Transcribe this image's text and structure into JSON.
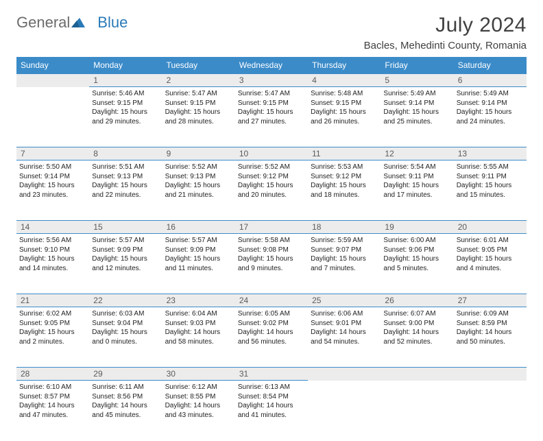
{
  "logo": {
    "general": "General",
    "blue": "Blue"
  },
  "title": "July 2024",
  "location": "Bacles, Mehedinti County, Romania",
  "colors": {
    "header_bg": "#3b8bc9",
    "header_text": "#ffffff",
    "daynum_bg": "#ececec",
    "daynum_text": "#5a5a5a",
    "border": "#3b8bc9",
    "body_text": "#222222",
    "title_text": "#404040",
    "logo_gray": "#6b6b6b",
    "logo_blue": "#2a7ab8"
  },
  "typography": {
    "title_fontsize": 30,
    "location_fontsize": 15,
    "dayhead_fontsize": 12,
    "daynum_fontsize": 12,
    "cell_fontsize": 10
  },
  "day_headers": [
    "Sunday",
    "Monday",
    "Tuesday",
    "Wednesday",
    "Thursday",
    "Friday",
    "Saturday"
  ],
  "weeks": [
    {
      "nums": [
        "",
        "1",
        "2",
        "3",
        "4",
        "5",
        "6"
      ],
      "cells": [
        null,
        {
          "sr": "Sunrise: 5:46 AM",
          "ss": "Sunset: 9:15 PM",
          "dl1": "Daylight: 15 hours",
          "dl2": "and 29 minutes."
        },
        {
          "sr": "Sunrise: 5:47 AM",
          "ss": "Sunset: 9:15 PM",
          "dl1": "Daylight: 15 hours",
          "dl2": "and 28 minutes."
        },
        {
          "sr": "Sunrise: 5:47 AM",
          "ss": "Sunset: 9:15 PM",
          "dl1": "Daylight: 15 hours",
          "dl2": "and 27 minutes."
        },
        {
          "sr": "Sunrise: 5:48 AM",
          "ss": "Sunset: 9:15 PM",
          "dl1": "Daylight: 15 hours",
          "dl2": "and 26 minutes."
        },
        {
          "sr": "Sunrise: 5:49 AM",
          "ss": "Sunset: 9:14 PM",
          "dl1": "Daylight: 15 hours",
          "dl2": "and 25 minutes."
        },
        {
          "sr": "Sunrise: 5:49 AM",
          "ss": "Sunset: 9:14 PM",
          "dl1": "Daylight: 15 hours",
          "dl2": "and 24 minutes."
        }
      ]
    },
    {
      "nums": [
        "7",
        "8",
        "9",
        "10",
        "11",
        "12",
        "13"
      ],
      "cells": [
        {
          "sr": "Sunrise: 5:50 AM",
          "ss": "Sunset: 9:14 PM",
          "dl1": "Daylight: 15 hours",
          "dl2": "and 23 minutes."
        },
        {
          "sr": "Sunrise: 5:51 AM",
          "ss": "Sunset: 9:13 PM",
          "dl1": "Daylight: 15 hours",
          "dl2": "and 22 minutes."
        },
        {
          "sr": "Sunrise: 5:52 AM",
          "ss": "Sunset: 9:13 PM",
          "dl1": "Daylight: 15 hours",
          "dl2": "and 21 minutes."
        },
        {
          "sr": "Sunrise: 5:52 AM",
          "ss": "Sunset: 9:12 PM",
          "dl1": "Daylight: 15 hours",
          "dl2": "and 20 minutes."
        },
        {
          "sr": "Sunrise: 5:53 AM",
          "ss": "Sunset: 9:12 PM",
          "dl1": "Daylight: 15 hours",
          "dl2": "and 18 minutes."
        },
        {
          "sr": "Sunrise: 5:54 AM",
          "ss": "Sunset: 9:11 PM",
          "dl1": "Daylight: 15 hours",
          "dl2": "and 17 minutes."
        },
        {
          "sr": "Sunrise: 5:55 AM",
          "ss": "Sunset: 9:11 PM",
          "dl1": "Daylight: 15 hours",
          "dl2": "and 15 minutes."
        }
      ]
    },
    {
      "nums": [
        "14",
        "15",
        "16",
        "17",
        "18",
        "19",
        "20"
      ],
      "cells": [
        {
          "sr": "Sunrise: 5:56 AM",
          "ss": "Sunset: 9:10 PM",
          "dl1": "Daylight: 15 hours",
          "dl2": "and 14 minutes."
        },
        {
          "sr": "Sunrise: 5:57 AM",
          "ss": "Sunset: 9:09 PM",
          "dl1": "Daylight: 15 hours",
          "dl2": "and 12 minutes."
        },
        {
          "sr": "Sunrise: 5:57 AM",
          "ss": "Sunset: 9:09 PM",
          "dl1": "Daylight: 15 hours",
          "dl2": "and 11 minutes."
        },
        {
          "sr": "Sunrise: 5:58 AM",
          "ss": "Sunset: 9:08 PM",
          "dl1": "Daylight: 15 hours",
          "dl2": "and 9 minutes."
        },
        {
          "sr": "Sunrise: 5:59 AM",
          "ss": "Sunset: 9:07 PM",
          "dl1": "Daylight: 15 hours",
          "dl2": "and 7 minutes."
        },
        {
          "sr": "Sunrise: 6:00 AM",
          "ss": "Sunset: 9:06 PM",
          "dl1": "Daylight: 15 hours",
          "dl2": "and 5 minutes."
        },
        {
          "sr": "Sunrise: 6:01 AM",
          "ss": "Sunset: 9:05 PM",
          "dl1": "Daylight: 15 hours",
          "dl2": "and 4 minutes."
        }
      ]
    },
    {
      "nums": [
        "21",
        "22",
        "23",
        "24",
        "25",
        "26",
        "27"
      ],
      "cells": [
        {
          "sr": "Sunrise: 6:02 AM",
          "ss": "Sunset: 9:05 PM",
          "dl1": "Daylight: 15 hours",
          "dl2": "and 2 minutes."
        },
        {
          "sr": "Sunrise: 6:03 AM",
          "ss": "Sunset: 9:04 PM",
          "dl1": "Daylight: 15 hours",
          "dl2": "and 0 minutes."
        },
        {
          "sr": "Sunrise: 6:04 AM",
          "ss": "Sunset: 9:03 PM",
          "dl1": "Daylight: 14 hours",
          "dl2": "and 58 minutes."
        },
        {
          "sr": "Sunrise: 6:05 AM",
          "ss": "Sunset: 9:02 PM",
          "dl1": "Daylight: 14 hours",
          "dl2": "and 56 minutes."
        },
        {
          "sr": "Sunrise: 6:06 AM",
          "ss": "Sunset: 9:01 PM",
          "dl1": "Daylight: 14 hours",
          "dl2": "and 54 minutes."
        },
        {
          "sr": "Sunrise: 6:07 AM",
          "ss": "Sunset: 9:00 PM",
          "dl1": "Daylight: 14 hours",
          "dl2": "and 52 minutes."
        },
        {
          "sr": "Sunrise: 6:09 AM",
          "ss": "Sunset: 8:59 PM",
          "dl1": "Daylight: 14 hours",
          "dl2": "and 50 minutes."
        }
      ]
    },
    {
      "nums": [
        "28",
        "29",
        "30",
        "31",
        "",
        "",
        ""
      ],
      "cells": [
        {
          "sr": "Sunrise: 6:10 AM",
          "ss": "Sunset: 8:57 PM",
          "dl1": "Daylight: 14 hours",
          "dl2": "and 47 minutes."
        },
        {
          "sr": "Sunrise: 6:11 AM",
          "ss": "Sunset: 8:56 PM",
          "dl1": "Daylight: 14 hours",
          "dl2": "and 45 minutes."
        },
        {
          "sr": "Sunrise: 6:12 AM",
          "ss": "Sunset: 8:55 PM",
          "dl1": "Daylight: 14 hours",
          "dl2": "and 43 minutes."
        },
        {
          "sr": "Sunrise: 6:13 AM",
          "ss": "Sunset: 8:54 PM",
          "dl1": "Daylight: 14 hours",
          "dl2": "and 41 minutes."
        },
        null,
        null,
        null
      ]
    }
  ]
}
